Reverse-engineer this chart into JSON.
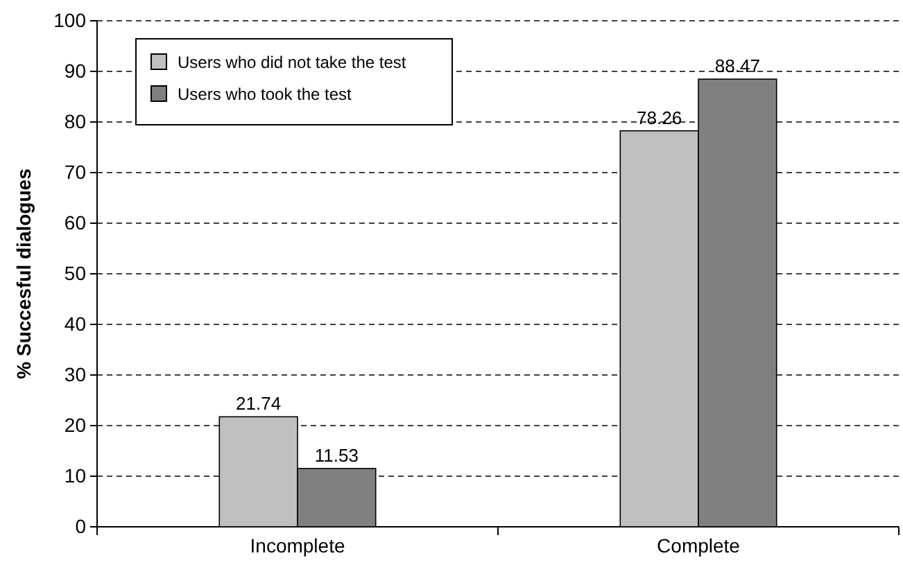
{
  "chart_data": {
    "type": "bar",
    "ylabel": "% Succesful dialogues",
    "categories": [
      "Incomplete",
      "Complete"
    ],
    "series": [
      {
        "name": "Users who did not take the test",
        "color": "#c0c0c0",
        "values": [
          21.74,
          78.26
        ]
      },
      {
        "name": "Users who took the test",
        "color": "#808080",
        "values": [
          11.53,
          88.47
        ]
      }
    ],
    "ylim": [
      0,
      100
    ],
    "yticks": [
      0,
      10,
      20,
      30,
      40,
      50,
      60,
      70,
      80,
      90,
      100
    ],
    "grid": "y",
    "legend": "top left",
    "data_labels": true
  }
}
